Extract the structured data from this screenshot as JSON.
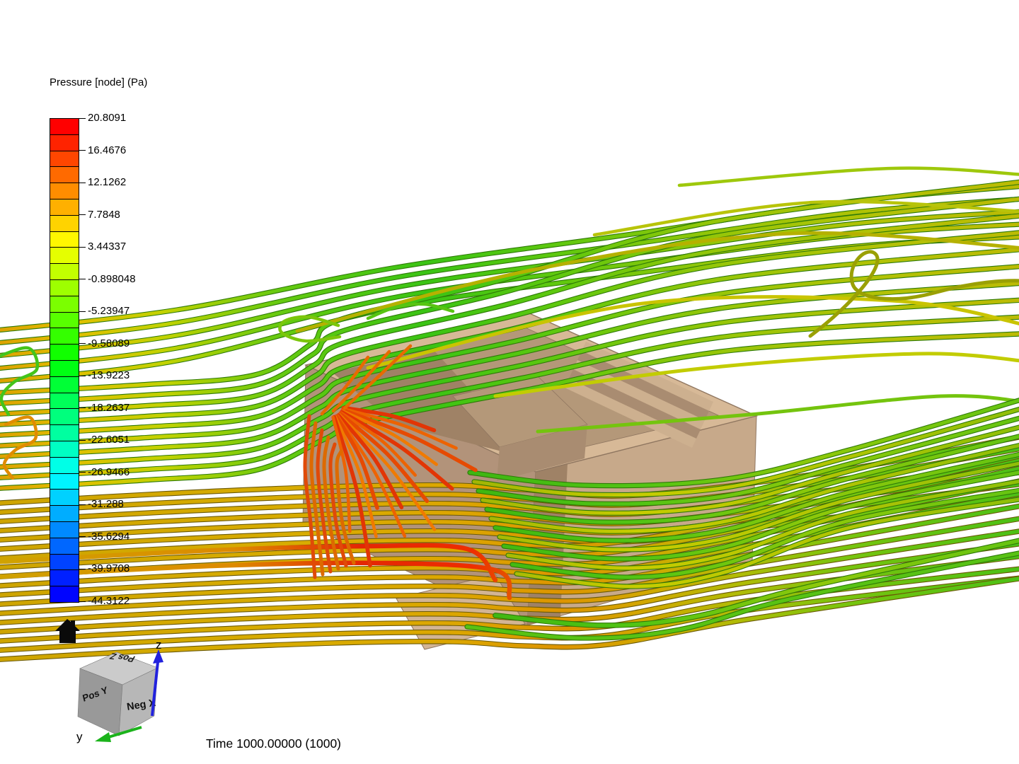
{
  "legend": {
    "title": "Pressure [node] (Pa)",
    "labels": [
      "20.8091",
      "16.4676",
      "12.1262",
      "7.7848",
      "3.44337",
      "-0.898048",
      "-5.23947",
      "-9.58089",
      "-13.9223",
      "-18.2637",
      "-22.6051",
      "-26.9466",
      "-31.288",
      "-35.6294",
      "-39.9708",
      "-44.3122"
    ],
    "cell_colors": [
      "#ff0000",
      "#ff2300",
      "#ff4600",
      "#ff6a00",
      "#ff8d00",
      "#ffb000",
      "#ffd300",
      "#fff700",
      "#e5ff00",
      "#c2ff00",
      "#9eff00",
      "#7bff00",
      "#58ff00",
      "#34ff00",
      "#11ff00",
      "#00ff13",
      "#00ff36",
      "#00ff59",
      "#00ff7d",
      "#00ffa0",
      "#00ffc3",
      "#00ffe7",
      "#00f4ff",
      "#00d1ff",
      "#00adff",
      "#008aff",
      "#0067ff",
      "#0043ff",
      "#0020ff",
      "#0004ff"
    ]
  },
  "time_label": "Time 1000.00000 (1000)",
  "nav_cube": {
    "top_face": "Pos Z",
    "left_face": "Pos Y",
    "front_face": "Neg X",
    "axis_z": "z",
    "axis_y": "y",
    "axis_z_color": "#2222dd",
    "axis_y_color": "#1bb31b",
    "face_top_color": "#cbcbcb",
    "face_left_color": "#999999",
    "face_front_color": "#b7b7b7"
  },
  "building": {
    "roof_color": "#d7b997",
    "courtyard_color": "#b49879",
    "courtyard_shadow": "#9f8266",
    "step_light": "#cdb08f",
    "step_dark": "#a98c71",
    "left_wall": "#b2937a",
    "right_wall": "#c7a98a",
    "edge_color": "#8f7660",
    "base_slab": "#d2b494"
  },
  "palette": {
    "gradients": {
      "gArc": [
        [
          0,
          "#db9c00"
        ],
        [
          0.08,
          "#e2be00"
        ],
        [
          0.17,
          "#c2d200"
        ],
        [
          0.28,
          "#66ca10"
        ],
        [
          0.42,
          "#3ac414"
        ],
        [
          0.55,
          "#60c80e"
        ],
        [
          0.7,
          "#96c608"
        ],
        [
          0.85,
          "#b2c206"
        ],
        [
          1,
          "#bcba04"
        ]
      ],
      "gSheaf": [
        [
          0,
          "#cda400"
        ],
        [
          0.3,
          "#d8ac00"
        ],
        [
          0.45,
          "#dca600"
        ],
        [
          0.55,
          "#dd9400"
        ],
        [
          0.63,
          "#d2a800"
        ],
        [
          0.72,
          "#b0bc06"
        ],
        [
          0.82,
          "#78c40e"
        ],
        [
          1,
          "#48c016"
        ]
      ],
      "gRight": [
        [
          0,
          "#38b211"
        ],
        [
          0.35,
          "#52c414"
        ],
        [
          0.65,
          "#8ec80a"
        ],
        [
          1,
          "#62c412"
        ]
      ],
      "gRightY": [
        [
          0,
          "#96ae06"
        ],
        [
          0.35,
          "#c6cc00"
        ],
        [
          0.7,
          "#aec404"
        ],
        [
          1,
          "#8cbe08"
        ]
      ],
      "gStreak": [
        [
          0,
          "#cfa400"
        ],
        [
          0.45,
          "#dd8a00"
        ],
        [
          0.68,
          "#e42604"
        ],
        [
          0.88,
          "#ee2e00"
        ],
        [
          1,
          "#e06c00"
        ]
      ]
    },
    "fan_colors": [
      "#e23505",
      "#ed6301",
      "#e64a02",
      "#f07a00"
    ],
    "wall_riser_colors": [
      "#e04a08",
      "#dd6a00"
    ],
    "under_gold": "#6b5a06",
    "under_green": "#2e7a08",
    "home_icon_color": "#0a0a0a"
  }
}
